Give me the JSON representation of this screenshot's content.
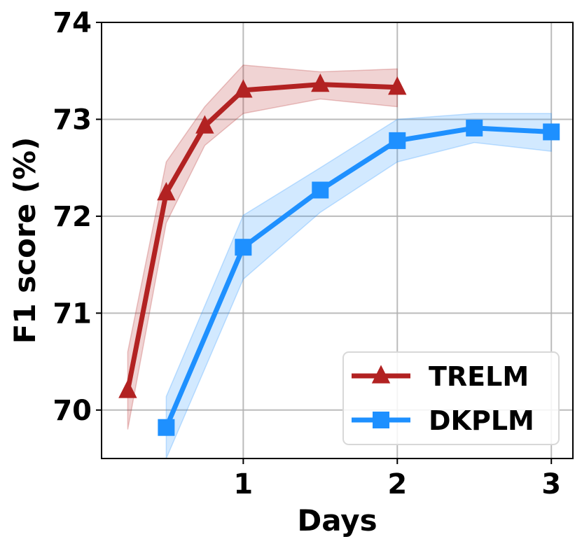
{
  "chart_data": {
    "type": "line",
    "xlabel": "Days",
    "ylabel": "F1 score (%)",
    "xlim": [
      0.08,
      3.14
    ],
    "ylim": [
      69.5,
      74.0
    ],
    "x_ticks": [
      1,
      2,
      3
    ],
    "y_ticks": [
      70,
      71,
      72,
      73,
      74
    ],
    "grid": true,
    "legend_position": "bottom-right",
    "series": [
      {
        "name": "TRELM",
        "color": "#b22222",
        "marker": "triangle",
        "x": [
          0.25,
          0.5,
          0.75,
          1.0,
          1.5,
          2.0
        ],
        "y": [
          70.2,
          72.24,
          72.93,
          73.3,
          73.36,
          73.33
        ],
        "band_lower": [
          69.8,
          71.93,
          72.73,
          73.06,
          73.21,
          73.13
        ],
        "band_upper": [
          70.6,
          72.56,
          73.13,
          73.56,
          73.49,
          73.52
        ]
      },
      {
        "name": "DKPLM",
        "color": "#1e90ff",
        "marker": "square",
        "x": [
          0.5,
          1.0,
          1.5,
          2.0,
          2.5,
          3.0
        ],
        "y": [
          69.82,
          71.68,
          72.27,
          72.78,
          72.91,
          72.87
        ],
        "band_lower": [
          69.5,
          71.35,
          72.04,
          72.56,
          72.76,
          72.67
        ],
        "band_upper": [
          70.14,
          72.01,
          72.5,
          73.0,
          73.06,
          73.06
        ]
      }
    ]
  }
}
